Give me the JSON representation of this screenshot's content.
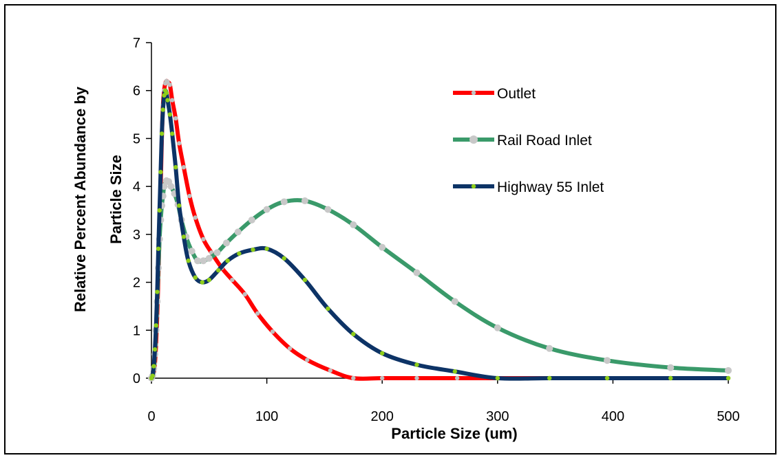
{
  "chart_data": {
    "type": "line",
    "title": "",
    "xlabel": "Particle Size (um)",
    "ylabel_lines": [
      "Relative Percent Abundance by",
      "Particle Size"
    ],
    "xlim": [
      0,
      500
    ],
    "ylim": [
      0,
      7
    ],
    "xticks": [
      0,
      100,
      200,
      300,
      400,
      500
    ],
    "yticks": [
      0,
      1,
      2,
      3,
      4,
      5,
      6,
      7
    ],
    "grid": false,
    "legend_position": "upper-right",
    "series": [
      {
        "name": "Outlet",
        "color": "#ff0000",
        "marker_color": "#c0c0c0",
        "marker_size": "small",
        "x": [
          0,
          1,
          2,
          3,
          4,
          5,
          6,
          7,
          8,
          9,
          10,
          11,
          12,
          13,
          14,
          16,
          18,
          21,
          24,
          28,
          33,
          38,
          45,
          52,
          61,
          70,
          81,
          92,
          105,
          120,
          135,
          155,
          175,
          200,
          230,
          265,
          300,
          345,
          395,
          450,
          500
        ],
        "y": [
          0,
          0.03,
          0.1,
          0.3,
          0.7,
          1.3,
          2.1,
          3.0,
          4.0,
          5.0,
          5.7,
          6.0,
          6.15,
          6.2,
          6.18,
          6.12,
          5.8,
          5.42,
          4.9,
          4.4,
          3.8,
          3.35,
          2.9,
          2.62,
          2.3,
          2.05,
          1.75,
          1.35,
          0.97,
          0.62,
          0.38,
          0.16,
          0,
          0,
          0,
          0,
          0,
          0,
          0,
          0,
          0
        ]
      },
      {
        "name": "Rail Road Inlet",
        "color": "#3a9a6a",
        "marker_color": "#c8c8c8",
        "marker_size": "large",
        "x": [
          0,
          1,
          2,
          3,
          4,
          5,
          6,
          7,
          8,
          9,
          10,
          11,
          13,
          15,
          17,
          20,
          23,
          26,
          30,
          35,
          40,
          45,
          50,
          57,
          65,
          75,
          87,
          100,
          115,
          133,
          153,
          175,
          200,
          230,
          263,
          300,
          345,
          395,
          450,
          500
        ],
        "y": [
          0,
          0.05,
          0.2,
          0.5,
          1.0,
          1.6,
          2.3,
          2.9,
          3.3,
          3.6,
          3.8,
          4.0,
          4.12,
          4.1,
          4.0,
          3.85,
          3.62,
          3.3,
          2.95,
          2.65,
          2.45,
          2.45,
          2.5,
          2.62,
          2.82,
          3.05,
          3.3,
          3.52,
          3.68,
          3.7,
          3.52,
          3.2,
          2.73,
          2.2,
          1.6,
          1.05,
          0.62,
          0.37,
          0.22,
          0.16
        ]
      },
      {
        "name": "Highway 55 Inlet",
        "color": "#0d3366",
        "marker_color": "#8fce1a",
        "marker_size": "small",
        "x": [
          0,
          1,
          2,
          3,
          4,
          5,
          6,
          7,
          8,
          9,
          10,
          11,
          12,
          13,
          14,
          16,
          18,
          21,
          24,
          28,
          32,
          38,
          44,
          50,
          58,
          66,
          76,
          88,
          100,
          115,
          133,
          153,
          175,
          200,
          230,
          263,
          300,
          345,
          395,
          450,
          500
        ],
        "y": [
          0,
          0.05,
          0.25,
          0.6,
          1.1,
          1.8,
          2.7,
          3.5,
          4.3,
          5.1,
          5.6,
          5.9,
          6.0,
          5.95,
          5.8,
          5.5,
          5.1,
          4.4,
          3.6,
          2.95,
          2.45,
          2.1,
          2.0,
          2.05,
          2.25,
          2.45,
          2.6,
          2.68,
          2.7,
          2.5,
          2.05,
          1.45,
          0.92,
          0.52,
          0.28,
          0.14,
          0,
          0,
          0,
          0,
          0
        ]
      }
    ]
  }
}
